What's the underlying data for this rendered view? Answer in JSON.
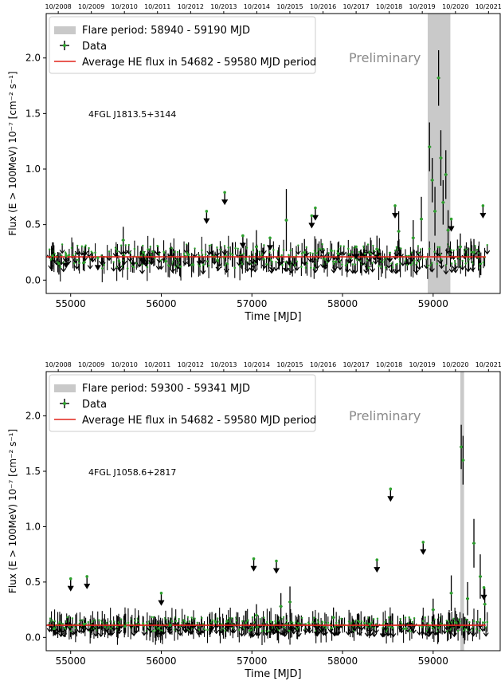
{
  "chart_data": [
    {
      "type": "scatter",
      "source_name": "4FGL J1813.5+3144",
      "xlabel": "Time [MJD]",
      "ylabel": "Flux (E > 100MeV) 10⁻⁷ [cm⁻² s⁻¹]",
      "xlim": [
        54730,
        59740
      ],
      "ylim": [
        -0.12,
        2.4
      ],
      "xticks": [
        55000,
        56000,
        57000,
        58000,
        59000
      ],
      "yticks": [
        0.0,
        0.5,
        1.0,
        1.5,
        2.0
      ],
      "top_ticks": [
        {
          "mjd": 54740,
          "label": "10/2008"
        },
        {
          "mjd": 55105,
          "label": "10/2009"
        },
        {
          "mjd": 55470,
          "label": "10/2010"
        },
        {
          "mjd": 55835,
          "label": "10/2011"
        },
        {
          "mjd": 56201,
          "label": "10/2012"
        },
        {
          "mjd": 56566,
          "label": "10/2013"
        },
        {
          "mjd": 56931,
          "label": "10/2014"
        },
        {
          "mjd": 57296,
          "label": "10/2015"
        },
        {
          "mjd": 57662,
          "label": "10/2016"
        },
        {
          "mjd": 58027,
          "label": "10/2017"
        },
        {
          "mjd": 58392,
          "label": "10/2018"
        },
        {
          "mjd": 58757,
          "label": "10/2019"
        },
        {
          "mjd": 59123,
          "label": "10/2020"
        },
        {
          "mjd": 59488,
          "label": "10/2021"
        }
      ],
      "flare": {
        "start": 58940,
        "end": 59190
      },
      "average": {
        "value": 0.21,
        "start": 54682,
        "end": 59580
      },
      "annotation": "Preliminary",
      "legend": {
        "position": "top-left",
        "entries": [
          "Flare period: 58940 - 59190 MJD",
          "Data",
          "Average HE flux in 54682 - 59580 MJD period"
        ]
      },
      "detections": [
        {
          "x": 54800,
          "y": 0.22,
          "err": 0.12
        },
        {
          "x": 54870,
          "y": 0.15,
          "err": 0.1
        },
        {
          "x": 55150,
          "y": 0.16,
          "err": 0.08
        },
        {
          "x": 55580,
          "y": 0.36,
          "err": 0.12
        },
        {
          "x": 56050,
          "y": 0.17,
          "err": 0.1
        },
        {
          "x": 56300,
          "y": 0.23,
          "err": 0.11
        },
        {
          "x": 56620,
          "y": 0.18,
          "err": 0.1
        },
        {
          "x": 57050,
          "y": 0.3,
          "err": 0.15
        },
        {
          "x": 57380,
          "y": 0.54,
          "err": 0.28
        },
        {
          "x": 57580,
          "y": 0.25,
          "err": 0.12
        },
        {
          "x": 57950,
          "y": 0.24,
          "err": 0.1
        },
        {
          "x": 58380,
          "y": 0.28,
          "err": 0.12
        },
        {
          "x": 58620,
          "y": 0.44,
          "err": 0.18
        },
        {
          "x": 58780,
          "y": 0.38,
          "err": 0.16
        },
        {
          "x": 58870,
          "y": 0.55,
          "err": 0.2
        },
        {
          "x": 58960,
          "y": 1.2,
          "err": 0.22
        },
        {
          "x": 58990,
          "y": 0.9,
          "err": 0.2
        },
        {
          "x": 59020,
          "y": 0.62,
          "err": 0.22
        },
        {
          "x": 59060,
          "y": 1.82,
          "err": 0.25
        },
        {
          "x": 59085,
          "y": 1.1,
          "err": 0.25
        },
        {
          "x": 59110,
          "y": 0.7,
          "err": 0.2
        },
        {
          "x": 59140,
          "y": 0.95,
          "err": 0.22
        },
        {
          "x": 59165,
          "y": 0.45,
          "err": 0.18
        },
        {
          "x": 59300,
          "y": 0.3,
          "err": 0.12
        },
        {
          "x": 59450,
          "y": 0.25,
          "err": 0.12
        }
      ],
      "upper_limits": [
        {
          "x": 54950,
          "y": 0.22
        },
        {
          "x": 55300,
          "y": 0.2
        },
        {
          "x": 55800,
          "y": 0.25
        },
        {
          "x": 56500,
          "y": 0.62
        },
        {
          "x": 56700,
          "y": 0.79
        },
        {
          "x": 56900,
          "y": 0.4
        },
        {
          "x": 57200,
          "y": 0.38
        },
        {
          "x": 57700,
          "y": 0.65
        },
        {
          "x": 57660,
          "y": 0.58
        },
        {
          "x": 58150,
          "y": 0.3
        },
        {
          "x": 58580,
          "y": 0.67
        },
        {
          "x": 59200,
          "y": 0.55
        },
        {
          "x": 59550,
          "y": 0.67
        }
      ]
    },
    {
      "type": "scatter",
      "source_name": "4FGL J1058.6+2817",
      "xlabel": "Time [MJD]",
      "ylabel": "Flux (E > 100MeV) 10⁻⁷ [cm⁻² s⁻¹]",
      "xlim": [
        54730,
        59740
      ],
      "ylim": [
        -0.12,
        2.4
      ],
      "xticks": [
        55000,
        56000,
        57000,
        58000,
        59000
      ],
      "yticks": [
        0.0,
        0.5,
        1.0,
        1.5,
        2.0
      ],
      "top_ticks": [
        {
          "mjd": 54740,
          "label": "10/2008"
        },
        {
          "mjd": 55105,
          "label": "10/2009"
        },
        {
          "mjd": 55470,
          "label": "10/2010"
        },
        {
          "mjd": 55835,
          "label": "10/2011"
        },
        {
          "mjd": 56201,
          "label": "10/2012"
        },
        {
          "mjd": 56566,
          "label": "10/2013"
        },
        {
          "mjd": 56931,
          "label": "10/2014"
        },
        {
          "mjd": 57296,
          "label": "10/2015"
        },
        {
          "mjd": 57662,
          "label": "10/2016"
        },
        {
          "mjd": 58027,
          "label": "10/2017"
        },
        {
          "mjd": 58392,
          "label": "10/2018"
        },
        {
          "mjd": 58757,
          "label": "10/2019"
        },
        {
          "mjd": 59123,
          "label": "10/2020"
        },
        {
          "mjd": 59488,
          "label": "10/2021"
        }
      ],
      "flare": {
        "start": 59300,
        "end": 59341
      },
      "average": {
        "value": 0.11,
        "start": 54682,
        "end": 59580
      },
      "annotation": "Preliminary",
      "legend": {
        "position": "top-left",
        "entries": [
          "Flare period: 59300 - 59341 MJD",
          "Data",
          "Average HE flux in 54682 - 59580 MJD period"
        ]
      },
      "detections": [
        {
          "x": 54820,
          "y": 0.08,
          "err": 0.06
        },
        {
          "x": 55150,
          "y": 0.12,
          "err": 0.07
        },
        {
          "x": 55600,
          "y": 0.1,
          "err": 0.06
        },
        {
          "x": 56100,
          "y": 0.11,
          "err": 0.07
        },
        {
          "x": 56600,
          "y": 0.14,
          "err": 0.08
        },
        {
          "x": 57050,
          "y": 0.2,
          "err": 0.1
        },
        {
          "x": 57320,
          "y": 0.28,
          "err": 0.12
        },
        {
          "x": 57420,
          "y": 0.32,
          "err": 0.14
        },
        {
          "x": 57900,
          "y": 0.18,
          "err": 0.09
        },
        {
          "x": 58300,
          "y": 0.12,
          "err": 0.07
        },
        {
          "x": 58700,
          "y": 0.08,
          "err": 0.05
        },
        {
          "x": 59000,
          "y": 0.25,
          "err": 0.1
        },
        {
          "x": 59200,
          "y": 0.4,
          "err": 0.16
        },
        {
          "x": 59310,
          "y": 1.72,
          "err": 0.2
        },
        {
          "x": 59330,
          "y": 1.6,
          "err": 0.22
        },
        {
          "x": 59380,
          "y": 0.35,
          "err": 0.15
        },
        {
          "x": 59450,
          "y": 0.85,
          "err": 0.22
        },
        {
          "x": 59520,
          "y": 0.55,
          "err": 0.2
        },
        {
          "x": 59570,
          "y": 0.3,
          "err": 0.14
        }
      ],
      "upper_limits": [
        {
          "x": 55000,
          "y": 0.53
        },
        {
          "x": 55180,
          "y": 0.55
        },
        {
          "x": 56000,
          "y": 0.4
        },
        {
          "x": 57020,
          "y": 0.71
        },
        {
          "x": 57270,
          "y": 0.69
        },
        {
          "x": 58380,
          "y": 0.7
        },
        {
          "x": 58530,
          "y": 1.34
        },
        {
          "x": 58890,
          "y": 0.86
        },
        {
          "x": 59560,
          "y": 0.45
        }
      ]
    }
  ],
  "colors": {
    "average_line": "#e2231a",
    "flare_band": "#c9c9c9",
    "points": "#2ca02c",
    "markers": "#000000"
  }
}
